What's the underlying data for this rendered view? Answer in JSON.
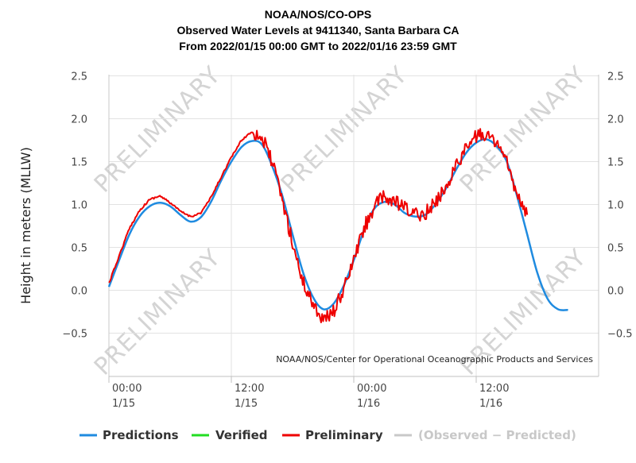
{
  "chart_data": {
    "type": "line",
    "title_lines": [
      "NOAA/NOS/CO-OPS",
      "Observed Water Levels at 9411340, Santa Barbara CA",
      "From 2022/01/15 00:00 GMT to 2022/01/16 23:59 GMT"
    ],
    "ylabel": "Height in meters (MLLW)",
    "credit": "NOAA/NOS/Center for Operational Oceanographic Products and Services",
    "watermark": "PRELIMINARY",
    "x_range": [
      "2022-01-15 00:00",
      "2022-01-16 23:59"
    ],
    "ylim": [
      -1.0,
      2.5
    ],
    "y_ticks": [
      "2.5",
      "2.0",
      "1.5",
      "1.0",
      "0.5",
      "0.0",
      "−0.5"
    ],
    "x_ticks": [
      {
        "time": "2022-01-15 00:00",
        "label1": "00:00",
        "label2": "1/15"
      },
      {
        "time": "2022-01-15 12:00",
        "label1": "12:00",
        "label2": "1/15"
      },
      {
        "time": "2022-01-16 00:00",
        "label1": "00:00",
        "label2": "1/16"
      },
      {
        "time": "2022-01-16 12:00",
        "label1": "12:00",
        "label2": "1/16"
      }
    ],
    "grid": true,
    "legend_position": "bottom",
    "series": [
      {
        "name": "Predictions",
        "color": "#1f8be0",
        "x": [
          "2022-01-15 00:00",
          "2022-01-15 01:00",
          "2022-01-15 02:00",
          "2022-01-15 03:00",
          "2022-01-15 04:00",
          "2022-01-15 05:00",
          "2022-01-15 06:00",
          "2022-01-15 07:00",
          "2022-01-15 08:00",
          "2022-01-15 09:00",
          "2022-01-15 10:00",
          "2022-01-15 11:00",
          "2022-01-15 12:00",
          "2022-01-15 13:00",
          "2022-01-15 14:00",
          "2022-01-15 15:00",
          "2022-01-15 16:00",
          "2022-01-15 17:00",
          "2022-01-15 18:00",
          "2022-01-15 19:00",
          "2022-01-15 20:00",
          "2022-01-15 21:00",
          "2022-01-15 22:00",
          "2022-01-15 23:00",
          "2022-01-16 00:00",
          "2022-01-16 01:00",
          "2022-01-16 02:00",
          "2022-01-16 03:00",
          "2022-01-16 04:00",
          "2022-01-16 05:00",
          "2022-01-16 06:00",
          "2022-01-16 07:00",
          "2022-01-16 08:00",
          "2022-01-16 09:00",
          "2022-01-16 10:00",
          "2022-01-16 11:00",
          "2022-01-16 12:00",
          "2022-01-16 13:00",
          "2022-01-16 14:00",
          "2022-01-16 15:00",
          "2022-01-16 16:00",
          "2022-01-16 17:00",
          "2022-01-16 18:00",
          "2022-01-16 19:00",
          "2022-01-16 20:00",
          "2022-01-16 21:00",
          "2022-01-16 22:00",
          "2022-01-16 23:00",
          "2022-01-16 23:59"
        ],
        "values": [
          0.04,
          0.35,
          0.65,
          0.86,
          0.98,
          1.02,
          0.98,
          0.88,
          0.8,
          0.85,
          1.03,
          1.28,
          1.5,
          1.67,
          1.74,
          1.7,
          1.45,
          1.1,
          0.65,
          0.22,
          -0.08,
          -0.22,
          -0.16,
          0.05,
          0.35,
          0.7,
          0.95,
          1.03,
          1.0,
          0.9,
          0.86,
          0.88,
          1.0,
          1.18,
          1.4,
          1.6,
          1.72,
          1.76,
          1.68,
          1.5,
          1.1,
          0.65,
          0.2,
          -0.1,
          -0.22,
          -0.23,
          null,
          null,
          null
        ]
      },
      {
        "name": "Verified",
        "color": "#22dd22",
        "x": [],
        "values": []
      },
      {
        "name": "Preliminary",
        "color": "#ee0000",
        "x": [
          "2022-01-15 00:00",
          "2022-01-15 01:00",
          "2022-01-15 02:00",
          "2022-01-15 03:00",
          "2022-01-15 04:00",
          "2022-01-15 05:00",
          "2022-01-15 06:00",
          "2022-01-15 07:00",
          "2022-01-15 08:00",
          "2022-01-15 09:00",
          "2022-01-15 10:00",
          "2022-01-15 11:00",
          "2022-01-15 12:00",
          "2022-01-15 13:00",
          "2022-01-15 14:00",
          "2022-01-15 15:00",
          "2022-01-15 16:00",
          "2022-01-15 17:00",
          "2022-01-15 18:00",
          "2022-01-15 19:00",
          "2022-01-15 20:00",
          "2022-01-15 21:00",
          "2022-01-15 22:00",
          "2022-01-15 23:00",
          "2022-01-16 00:00",
          "2022-01-16 01:00",
          "2022-01-16 02:00",
          "2022-01-16 03:00",
          "2022-01-16 04:00",
          "2022-01-16 05:00",
          "2022-01-16 06:00",
          "2022-01-16 07:00",
          "2022-01-16 08:00",
          "2022-01-16 09:00",
          "2022-01-16 10:00",
          "2022-01-16 11:00",
          "2022-01-16 12:00",
          "2022-01-16 13:00",
          "2022-01-16 14:00",
          "2022-01-16 15:00",
          "2022-01-16 16:00",
          "2022-01-16 17:00",
          "2022-01-16 18:00"
        ],
        "values": [
          0.08,
          0.4,
          0.72,
          0.93,
          1.06,
          1.1,
          1.02,
          0.92,
          0.86,
          0.9,
          1.08,
          1.32,
          1.55,
          1.75,
          1.85,
          1.78,
          1.5,
          1.05,
          0.55,
          0.1,
          -0.15,
          -0.35,
          -0.25,
          0.0,
          0.35,
          0.72,
          0.98,
          1.08,
          1.03,
          0.95,
          0.88,
          0.9,
          1.02,
          1.2,
          1.45,
          1.65,
          1.8,
          1.82,
          1.72,
          1.5,
          1.1,
          0.88,
          null
        ]
      },
      {
        "name": "(Observed - Predicted)",
        "color": "#c8c8c8",
        "x": [],
        "values": []
      }
    ]
  },
  "legend": {
    "predictions": "Predictions",
    "verified": "Verified",
    "preliminary": "Preliminary",
    "difference": "(Observed − Predicted)"
  }
}
